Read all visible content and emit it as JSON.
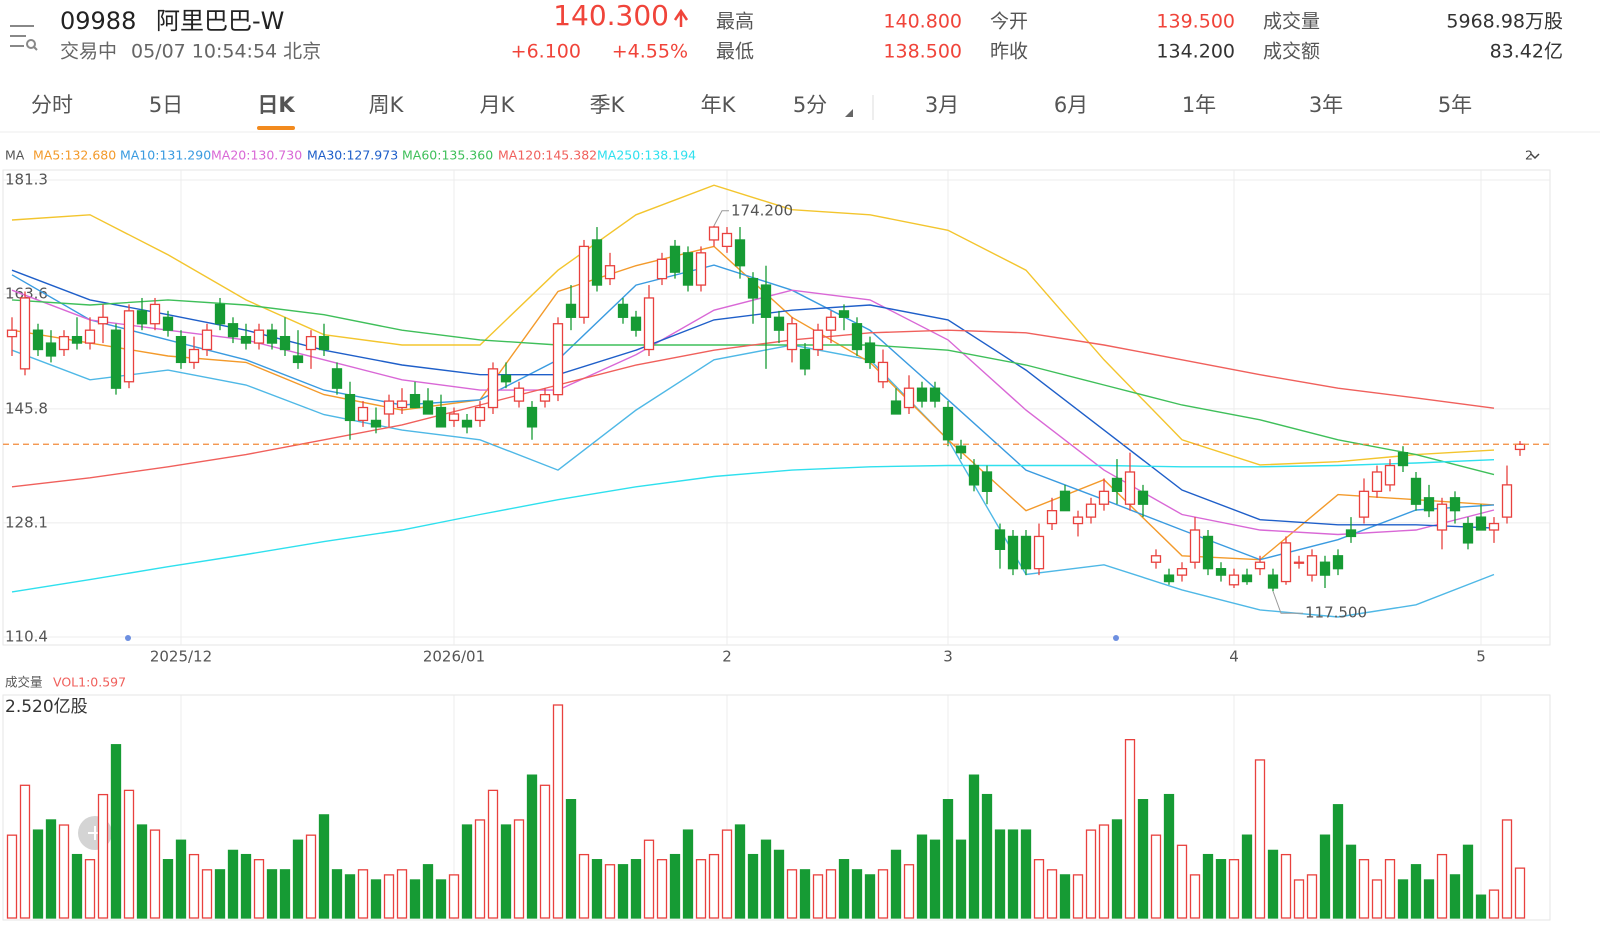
{
  "header": {
    "code": "09988",
    "name": "阿里巴巴-W",
    "status": "交易中",
    "time": "05/07 10:54:54 北京",
    "price": "140.300",
    "change": "+6.100",
    "change_pct": "+4.55%",
    "stats": [
      {
        "label": "最高",
        "value": "140.800"
      },
      {
        "label": "最低",
        "value": "138.500"
      },
      {
        "label": "今开",
        "value": "139.500"
      },
      {
        "label": "昨收",
        "value": "134.200"
      },
      {
        "label": "成交量",
        "value": "5968.98万股"
      },
      {
        "label": "成交额",
        "value": "83.42亿"
      }
    ]
  },
  "tabs": [
    "分时",
    "5日",
    "日K",
    "周K",
    "月K",
    "季K",
    "年K",
    "5分",
    "3月",
    "6月",
    "1年",
    "3年",
    "5年"
  ],
  "active_tab": 2,
  "chart_data": [
    {
      "type": "candlestick",
      "indicator": "MA",
      "period": "2",
      "xlim": [
        -0.5,
        116.5
      ],
      "xticks": [
        {
          "value": 13,
          "label": "2025/12"
        },
        {
          "value": 34,
          "label": "2026/01"
        },
        {
          "value": 55,
          "label": "2"
        },
        {
          "value": 72,
          "label": "3"
        },
        {
          "value": 94,
          "label": "4"
        },
        {
          "value": 113,
          "label": "5"
        }
      ],
      "ylim": [
        110.4,
        181.3
      ],
      "yticks": [
        181.3,
        163.6,
        145.8,
        128.1,
        110.4
      ],
      "grid": true,
      "up_color": "#e8413e",
      "down_color": "#169b34",
      "ohlc": [
        [
          157,
          160,
          154,
          158
        ],
        [
          152,
          164,
          151,
          163
        ],
        [
          158,
          159,
          154,
          155
        ],
        [
          156,
          158,
          153,
          154
        ],
        [
          155,
          158,
          154,
          157
        ],
        [
          157,
          160,
          155,
          156
        ],
        [
          156,
          160,
          155,
          158
        ],
        [
          159,
          162,
          156,
          160
        ],
        [
          158,
          159,
          148,
          149
        ],
        [
          150,
          162,
          149,
          161
        ],
        [
          161,
          163,
          158,
          159
        ],
        [
          159,
          163,
          158,
          162
        ],
        [
          160,
          161,
          157,
          158
        ],
        [
          157,
          158,
          152,
          153
        ],
        [
          153,
          157,
          152,
          155
        ],
        [
          155,
          159,
          154,
          158
        ],
        [
          162,
          163,
          158,
          159
        ],
        [
          159,
          160,
          156,
          157
        ],
        [
          157,
          159,
          155,
          156
        ],
        [
          156,
          159,
          155,
          158
        ],
        [
          158,
          159,
          155,
          156
        ],
        [
          157,
          160,
          154,
          155
        ],
        [
          154,
          158,
          152,
          153
        ],
        [
          155,
          158,
          152,
          157
        ],
        [
          157,
          159,
          154,
          155
        ],
        [
          152,
          153,
          148,
          149
        ],
        [
          148,
          150,
          141,
          144
        ],
        [
          144,
          147,
          143,
          146
        ],
        [
          144,
          146,
          142,
          143
        ],
        [
          145,
          148,
          143,
          147
        ],
        [
          146,
          149,
          145,
          147
        ],
        [
          148,
          150,
          146,
          146
        ],
        [
          147,
          149,
          145,
          145
        ],
        [
          146,
          148,
          143,
          143
        ],
        [
          144,
          146,
          143,
          145
        ],
        [
          144,
          145,
          142,
          143
        ],
        [
          144,
          147,
          143,
          146
        ],
        [
          146,
          153,
          145,
          152
        ],
        [
          151,
          153,
          149,
          150
        ],
        [
          147,
          150,
          146,
          149
        ],
        [
          146,
          147,
          141,
          143
        ],
        [
          147,
          149,
          146,
          148
        ],
        [
          148,
          160,
          147,
          159
        ],
        [
          162,
          165,
          158,
          160
        ],
        [
          160,
          172,
          159,
          171
        ],
        [
          172,
          174,
          164,
          165
        ],
        [
          166,
          170,
          165,
          168
        ],
        [
          162,
          163,
          159,
          160
        ],
        [
          160,
          161,
          157,
          158
        ],
        [
          155,
          165,
          154,
          163
        ],
        [
          166,
          170,
          165,
          169
        ],
        [
          171,
          172,
          166,
          167
        ],
        [
          170,
          171,
          164,
          165
        ],
        [
          165,
          171,
          164,
          170
        ],
        [
          172,
          174.2,
          171,
          174
        ],
        [
          171,
          174,
          170,
          173
        ],
        [
          172,
          174,
          166,
          168
        ],
        [
          166,
          167,
          159,
          163
        ],
        [
          165,
          168,
          152,
          160
        ],
        [
          160,
          161,
          156,
          158
        ],
        [
          155,
          160,
          153,
          159
        ],
        [
          155,
          156,
          151,
          152
        ],
        [
          155,
          159,
          154,
          158
        ],
        [
          158,
          161,
          156,
          160
        ],
        [
          161,
          162,
          158,
          160
        ],
        [
          159,
          160,
          154,
          155
        ],
        [
          156,
          157,
          152,
          153
        ],
        [
          150,
          155,
          149,
          153
        ],
        [
          147,
          149,
          145,
          145
        ],
        [
          146,
          151,
          145,
          149
        ],
        [
          149,
          150,
          146,
          147
        ],
        [
          149,
          150,
          146,
          147
        ],
        [
          146,
          147,
          140,
          141
        ],
        [
          140,
          141,
          138,
          139
        ],
        [
          137,
          138,
          133,
          134
        ],
        [
          136,
          137,
          131,
          133
        ],
        [
          127,
          128,
          121,
          124
        ],
        [
          126,
          127,
          120,
          121
        ],
        [
          126,
          127,
          120,
          121
        ],
        [
          121,
          128,
          120,
          126
        ],
        [
          128,
          132,
          127,
          130
        ],
        [
          133,
          134,
          130,
          130
        ],
        [
          128,
          130,
          126,
          129
        ],
        [
          129,
          132,
          128,
          131
        ],
        [
          131,
          135,
          130,
          133
        ],
        [
          135,
          138,
          131,
          133
        ],
        [
          131,
          139,
          130,
          136
        ],
        [
          133,
          134,
          129,
          131
        ],
        [
          122,
          124,
          121,
          123
        ],
        [
          120,
          121,
          118.5,
          119
        ],
        [
          120,
          122,
          119,
          121
        ],
        [
          122,
          129,
          121,
          127
        ],
        [
          126,
          127,
          120,
          121
        ],
        [
          121,
          122,
          119,
          120
        ],
        [
          118.5,
          121,
          118,
          120
        ],
        [
          120,
          121,
          118.5,
          119
        ],
        [
          121,
          123,
          120,
          122
        ],
        [
          120,
          121,
          117.5,
          118
        ],
        [
          119,
          126,
          118.5,
          125
        ],
        [
          122,
          123,
          121,
          122
        ],
        [
          120,
          124,
          119,
          123
        ],
        [
          122,
          123,
          118,
          120
        ],
        [
          123,
          124,
          120,
          121
        ],
        [
          127,
          129,
          125,
          126
        ],
        [
          129,
          135,
          128,
          133
        ],
        [
          133,
          137,
          132,
          136
        ],
        [
          134,
          138,
          133,
          137
        ],
        [
          139,
          140,
          136,
          137
        ],
        [
          135,
          136,
          130,
          131
        ],
        [
          132,
          134,
          129,
          130
        ],
        [
          127,
          132,
          124,
          131
        ],
        [
          132,
          133,
          128,
          130
        ],
        [
          128,
          129,
          124,
          125
        ],
        [
          129,
          131,
          127,
          127
        ],
        [
          127,
          129,
          125,
          128
        ],
        [
          129,
          137,
          128,
          134
        ],
        [
          139.5,
          140.8,
          138.5,
          140.3
        ]
      ],
      "ma_x": [
        0,
        6,
        12,
        18,
        24,
        30,
        36,
        42,
        48,
        54,
        60,
        66,
        72,
        78,
        84,
        90,
        96,
        102,
        108,
        114
      ],
      "series": [
        {
          "name": "MA5:132.680",
          "color": "#f39a2b",
          "values": [
            158,
            156,
            154,
            153,
            148,
            145.6,
            147.2,
            164,
            168,
            171,
            160,
            153,
            141,
            130,
            134.8,
            123,
            122.4,
            132.5,
            131.7,
            130.9
          ]
        },
        {
          "name": "MA10:131.290",
          "color": "#3a9be0",
          "values": [
            166.6,
            159.6,
            156.5,
            153.4,
            148.7,
            146.4,
            147.2,
            153.4,
            165,
            168.1,
            164.2,
            158,
            147.2,
            136.3,
            131.7,
            127,
            122.4,
            125.5,
            130.1,
            130.9
          ]
        },
        {
          "name": "MA20:130.730",
          "color": "#d968d6",
          "values": [
            164.2,
            159.6,
            158,
            156.5,
            153.4,
            150.3,
            148.7,
            148.7,
            154.2,
            161.1,
            164.2,
            162.7,
            156.5,
            145.6,
            136.3,
            129.4,
            127,
            126.3,
            127,
            130.1
          ]
        },
        {
          "name": "MA30:127.973",
          "color": "#1f5fc9",
          "values": [
            167.3,
            162.7,
            160.4,
            158,
            154.9,
            152.6,
            151.1,
            151.1,
            154.9,
            159.6,
            161.1,
            161.9,
            159.6,
            151.8,
            142.5,
            133.2,
            128.6,
            127.8,
            127.8,
            127.3
          ]
        },
        {
          "name": "MA60:135.360",
          "color": "#3fbf5a",
          "values": [
            162.7,
            161.9,
            162.7,
            161.9,
            160.4,
            158,
            156.5,
            155.7,
            155.7,
            155.7,
            155.7,
            155.7,
            154.9,
            152.6,
            149.5,
            146.4,
            144.1,
            141,
            138.7,
            135.6
          ]
        },
        {
          "name": "MA120:145.382",
          "color": "#f0605c",
          "values": [
            133.7,
            135.1,
            136.8,
            138.7,
            141,
            143.3,
            146.4,
            149.5,
            152.6,
            154.9,
            156.5,
            157.6,
            158,
            157.6,
            155.7,
            153.4,
            151.1,
            149,
            147.5,
            145.9
          ]
        },
        {
          "name": "MA250:138.194",
          "color": "#2fe0ee",
          "values": [
            117.4,
            119.3,
            121.3,
            123.2,
            125.2,
            127,
            129.4,
            131.7,
            133.7,
            135.3,
            136.3,
            136.8,
            137,
            137,
            137,
            136.8,
            136.8,
            137,
            137.4,
            137.9
          ]
        }
      ],
      "bands": [
        {
          "color": "#f3c52e",
          "values": [
            175.1,
            175.9,
            169.7,
            162.7,
            157.3,
            155.7,
            155.7,
            167.3,
            175.9,
            180.5,
            176.7,
            175.9,
            173.5,
            167.3,
            153.4,
            141,
            137.1,
            137.6,
            138.7,
            139.4
          ]
        },
        {
          "color": "#4fb8e6",
          "values": [
            154.9,
            150.3,
            151.8,
            149.5,
            144.9,
            142.5,
            141,
            136.3,
            145.6,
            153.4,
            155.7,
            153.4,
            141,
            120.1,
            121.6,
            117.7,
            114.6,
            113.5,
            115.4,
            120.1
          ]
        }
      ],
      "annotations": [
        {
          "x": 54,
          "value": 174.2,
          "label": "174.200"
        },
        {
          "x": 97,
          "value": 117.5,
          "label": "117.500"
        }
      ]
    },
    {
      "type": "bar",
      "title": "成交量",
      "indicator": "VOL1:0.597",
      "ylim": [
        0,
        2.52
      ],
      "yticks": [
        {
          "value": 2.52,
          "label": "2.520亿股"
        }
      ],
      "values": [
        0.98,
        1.57,
        1.04,
        1.16,
        1.1,
        0.75,
        0.69,
        1.46,
        2.05,
        1.51,
        1.1,
        1.04,
        0.69,
        0.92,
        0.75,
        0.57,
        0.57,
        0.8,
        0.75,
        0.69,
        0.57,
        0.57,
        0.92,
        0.98,
        1.22,
        0.57,
        0.51,
        0.57,
        0.45,
        0.51,
        0.57,
        0.45,
        0.63,
        0.45,
        0.51,
        1.1,
        1.16,
        1.51,
        1.1,
        1.16,
        1.69,
        1.57,
        2.52,
        1.4,
        0.75,
        0.69,
        0.63,
        0.63,
        0.69,
        0.92,
        0.69,
        0.75,
        1.04,
        0.69,
        0.75,
        1.04,
        1.1,
        0.75,
        0.92,
        0.8,
        0.57,
        0.57,
        0.51,
        0.57,
        0.69,
        0.57,
        0.51,
        0.57,
        0.8,
        0.63,
        0.98,
        0.92,
        1.4,
        0.92,
        1.69,
        1.46,
        1.04,
        1.04,
        1.04,
        0.69,
        0.57,
        0.51,
        0.51,
        1.04,
        1.1,
        1.16,
        2.11,
        1.4,
        0.98,
        1.46,
        0.86,
        0.51,
        0.75,
        0.69,
        0.69,
        0.98,
        1.87,
        0.8,
        0.75,
        0.45,
        0.51,
        0.98,
        1.34,
        0.86,
        0.69,
        0.45,
        0.69,
        0.45,
        0.63,
        0.45,
        0.75,
        0.51,
        0.86,
        0.27,
        0.33,
        1.16,
        0.59
      ]
    }
  ]
}
